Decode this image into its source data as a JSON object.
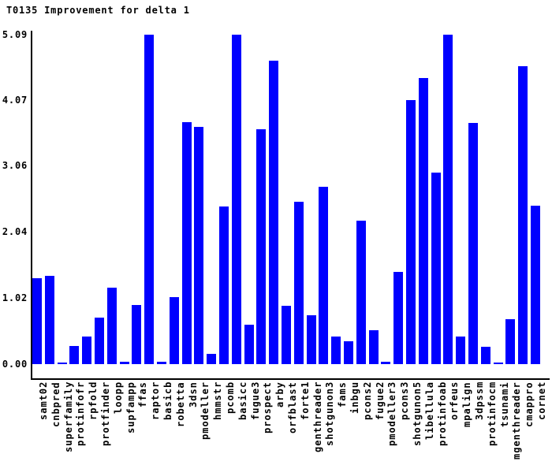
{
  "chart_data": {
    "type": "bar",
    "title": "T0135 Improvement for delta 1",
    "xlabel": "",
    "ylabel": "",
    "ylim": [
      0,
      5.09
    ],
    "ytick_labels": [
      "0.00",
      "1.02",
      "2.04",
      "3.06",
      "4.07",
      "5.09"
    ],
    "ytick_values": [
      0.0,
      1.02,
      2.04,
      3.06,
      4.07,
      5.09
    ],
    "grid": "off",
    "legend": "none",
    "bar_color": "#0000ff",
    "axis_color": "#000000",
    "background_color": "#ffffff",
    "categories": [
      "samt02",
      "cnbpred",
      "superfamily",
      "protinfofr",
      "rpfold",
      "protfinder",
      "loopp",
      "supfampp",
      "ffas",
      "raptor",
      "basicb",
      "robetta",
      "3dsn",
      "pmodeller",
      "hmmstr",
      "pcomb",
      "basicc",
      "fugue3",
      "prospect",
      "arby",
      "orfblast",
      "forte1",
      "genthreader",
      "shotgunon3",
      "fams",
      "inbgu",
      "pcons2",
      "fugue2",
      "pmodeller3",
      "pcons3",
      "shotgunon5",
      "libellula",
      "protinfoab",
      "orfeus",
      "mpalign",
      "3dpssm",
      "protinfocm",
      "tsunami",
      "mgenthreader",
      "cmappro",
      "cornet"
    ],
    "values": [
      1.32,
      1.36,
      0.03,
      0.28,
      0.42,
      0.72,
      1.18,
      0.04,
      0.91,
      5.09,
      0.04,
      1.03,
      3.74,
      3.66,
      0.16,
      2.43,
      5.09,
      0.61,
      3.62,
      4.68,
      0.9,
      2.5,
      0.75,
      2.74,
      0.43,
      0.35,
      2.22,
      0.52,
      0.04,
      1.42,
      4.07,
      4.42,
      2.96,
      5.09,
      0.42,
      3.72,
      0.27,
      0.03,
      0.69,
      4.6,
      2.45
    ]
  }
}
